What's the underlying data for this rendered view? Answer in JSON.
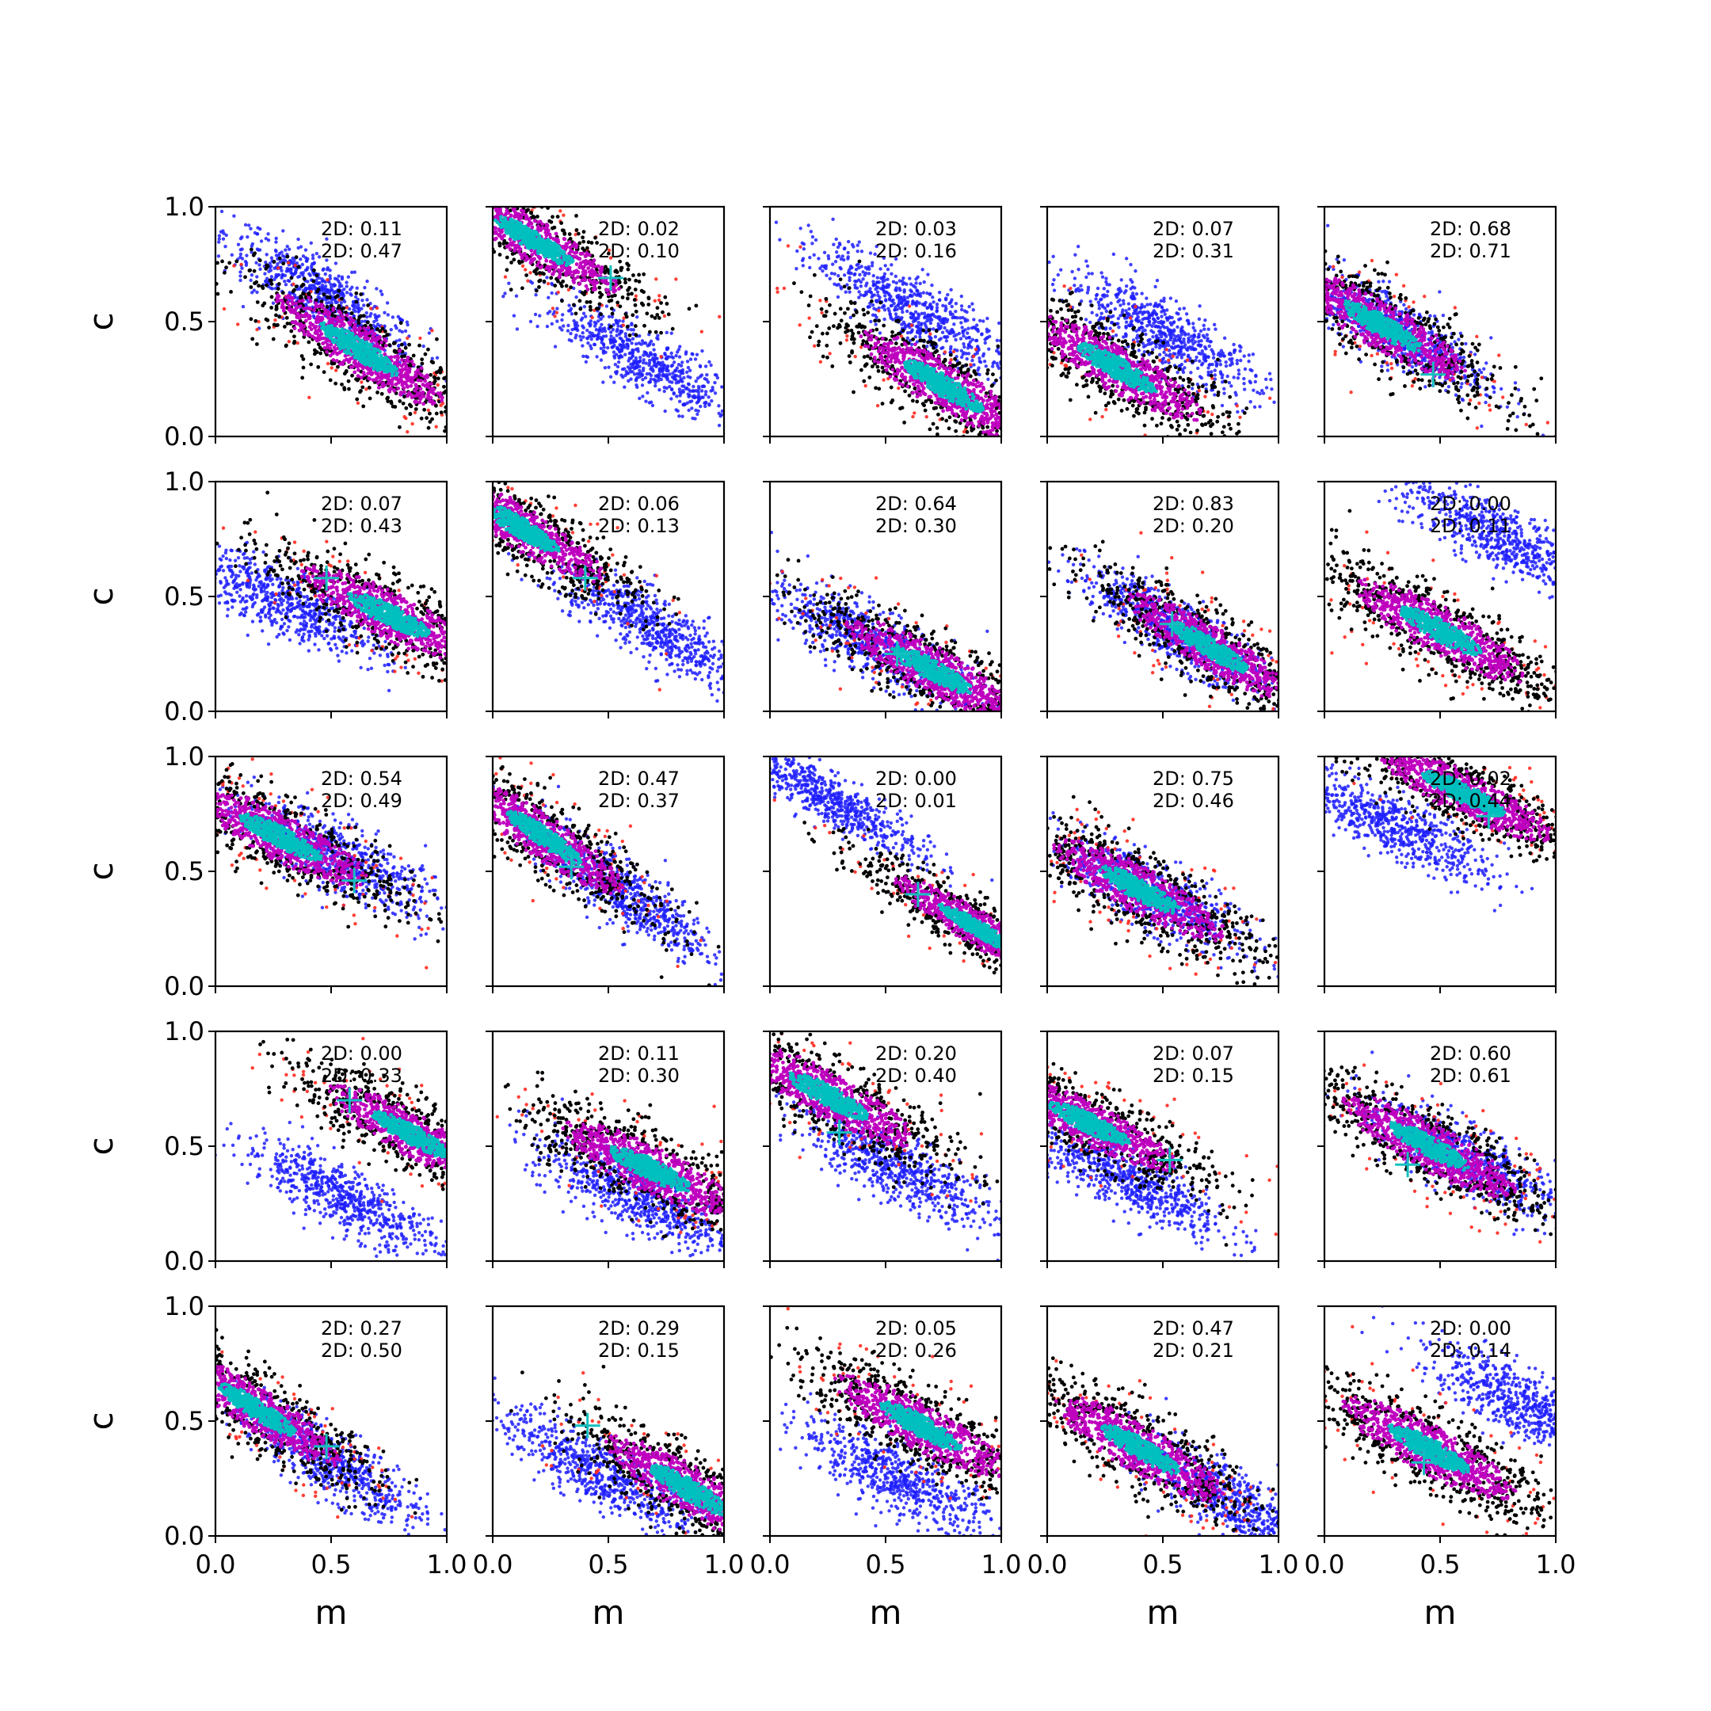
{
  "chart_data": {
    "type": "scatter",
    "grid": false,
    "layout_rows": 5,
    "layout_cols": 5,
    "xlabel": "m",
    "ylabel": "c",
    "xlim": [
      0,
      1
    ],
    "ylim": [
      0,
      1
    ],
    "x_ticks": [
      "0.0",
      "0.5",
      "1.0"
    ],
    "y_ticks": [
      "0.0",
      "0.5",
      "1.0"
    ],
    "point_colors": {
      "blue": "#1f1fff",
      "red": "#ff2a1f",
      "black": "#000000",
      "magenta": "#bf00bf",
      "cyan": "#00bfbf",
      "marker": "#17bfbf"
    },
    "panels": [
      {
        "labels": [
          "2D: 0.11",
          "2D: 0.47"
        ],
        "cross": null,
        "truth": [
          0.62,
          0.38
        ],
        "blue": [
          0.45,
          0.62
        ],
        "slope": -0.65,
        "cov": 0.11
      },
      {
        "labels": [
          "2D: 0.02",
          "2D: 0.10"
        ],
        "cross": [
          0.51,
          0.69
        ],
        "truth": [
          0.18,
          0.85
        ],
        "blue": [
          0.65,
          0.33
        ],
        "slope": -0.6,
        "cov": 0.1
      },
      {
        "labels": [
          "2D: 0.03",
          "2D: 0.16"
        ],
        "cross": null,
        "truth": [
          0.75,
          0.22
        ],
        "blue": [
          0.62,
          0.55
        ],
        "slope": -0.62,
        "cov": 0.11
      },
      {
        "labels": [
          "2D: 0.07",
          "2D: 0.31"
        ],
        "cross": null,
        "truth": [
          0.3,
          0.3
        ],
        "blue": [
          0.5,
          0.45
        ],
        "slope": -0.58,
        "cov": 0.11
      },
      {
        "labels": [
          "2D: 0.68",
          "2D: 0.71"
        ],
        "cross": [
          0.47,
          0.27
        ],
        "truth": [
          0.25,
          0.48
        ],
        "blue": [
          0.3,
          0.47
        ],
        "slope": -0.6,
        "cov": 0.11
      },
      {
        "labels": [
          "2D: 0.07",
          "2D: 0.43"
        ],
        "cross": [
          0.48,
          0.58
        ],
        "truth": [
          0.75,
          0.42
        ],
        "blue": [
          0.3,
          0.47
        ],
        "slope": -0.5,
        "cov": 0.11
      },
      {
        "labels": [
          "2D: 0.06",
          "2D: 0.13"
        ],
        "cross": [
          0.4,
          0.58
        ],
        "truth": [
          0.12,
          0.8
        ],
        "blue": [
          0.68,
          0.37
        ],
        "slope": -0.62,
        "cov": 0.1
      },
      {
        "labels": [
          "2D: 0.64",
          "2D: 0.30"
        ],
        "cross": [
          0.55,
          0.25
        ],
        "truth": [
          0.7,
          0.18
        ],
        "blue": [
          0.4,
          0.32
        ],
        "slope": -0.55,
        "cov": 0.11
      },
      {
        "labels": [
          "2D: 0.83",
          "2D: 0.20"
        ],
        "cross": [
          0.54,
          0.38
        ],
        "truth": [
          0.7,
          0.28
        ],
        "blue": [
          0.55,
          0.36
        ],
        "slope": -0.62,
        "cov": 0.1
      },
      {
        "labels": [
          "2D: 0.00",
          "2D: 0.11"
        ],
        "cross": null,
        "truth": [
          0.5,
          0.35
        ],
        "blue": [
          0.75,
          0.76
        ],
        "slope": -0.55,
        "cov": 0.11
      },
      {
        "labels": [
          "2D: 0.54",
          "2D: 0.49"
        ],
        "cross": [
          0.6,
          0.46
        ],
        "truth": [
          0.28,
          0.65
        ],
        "blue": [
          0.55,
          0.55
        ],
        "slope": -0.52,
        "cov": 0.11
      },
      {
        "labels": [
          "2D: 0.47",
          "2D: 0.37"
        ],
        "cross": [
          0.34,
          0.52
        ],
        "truth": [
          0.22,
          0.65
        ],
        "blue": [
          0.55,
          0.42
        ],
        "slope": -0.7,
        "cov": 0.1
      },
      {
        "labels": [
          "2D: 0.00",
          "2D: 0.01"
        ],
        "cross": [
          0.64,
          0.4
        ],
        "truth": [
          0.9,
          0.25
        ],
        "blue": [
          0.25,
          0.82
        ],
        "slope": -0.6,
        "cov": 0.08
      },
      {
        "labels": [
          "2D: 0.75",
          "2D: 0.46"
        ],
        "cross": null,
        "truth": [
          0.4,
          0.42
        ],
        "blue": [
          0.45,
          0.4
        ],
        "slope": -0.55,
        "cov": 0.11
      },
      {
        "labels": [
          "2D: 0.02",
          "2D: 0.44"
        ],
        "cross": [
          0.71,
          0.74
        ],
        "truth": [
          0.6,
          0.84
        ],
        "blue": [
          0.3,
          0.7
        ],
        "slope": -0.5,
        "cov": 0.1
      },
      {
        "labels": [
          "2D: 0.00",
          "2D: 0.33"
        ],
        "cross": [
          0.58,
          0.7
        ],
        "truth": [
          0.85,
          0.55
        ],
        "blue": [
          0.55,
          0.28
        ],
        "slope": -0.55,
        "cov": 0.1
      },
      {
        "labels": [
          "2D: 0.11",
          "2D: 0.30"
        ],
        "cross": null,
        "truth": [
          0.68,
          0.4
        ],
        "blue": [
          0.62,
          0.28
        ],
        "slope": -0.5,
        "cov": 0.11
      },
      {
        "labels": [
          "2D: 0.20",
          "2D: 0.40"
        ],
        "cross": [
          0.3,
          0.56
        ],
        "truth": [
          0.25,
          0.72
        ],
        "blue": [
          0.55,
          0.4
        ],
        "slope": -0.55,
        "cov": 0.11
      },
      {
        "labels": [
          "2D: 0.07",
          "2D: 0.15"
        ],
        "cross": [
          0.53,
          0.44
        ],
        "truth": [
          0.18,
          0.6
        ],
        "blue": [
          0.35,
          0.35
        ],
        "slope": -0.5,
        "cov": 0.1
      },
      {
        "labels": [
          "2D: 0.60",
          "2D: 0.61"
        ],
        "cross": [
          0.36,
          0.42
        ],
        "truth": [
          0.45,
          0.5
        ],
        "blue": [
          0.6,
          0.45
        ],
        "slope": -0.55,
        "cov": 0.11
      },
      {
        "labels": [
          "2D: 0.27",
          "2D: 0.50"
        ],
        "cross": [
          0.48,
          0.39
        ],
        "truth": [
          0.18,
          0.55
        ],
        "blue": [
          0.5,
          0.32
        ],
        "slope": -0.65,
        "cov": 0.1
      },
      {
        "labels": [
          "2D: 0.29",
          "2D: 0.15"
        ],
        "cross": [
          0.41,
          0.48
        ],
        "truth": [
          0.85,
          0.2
        ],
        "blue": [
          0.45,
          0.28
        ],
        "slope": -0.6,
        "cov": 0.11
      },
      {
        "labels": [
          "2D: 0.05",
          "2D: 0.26"
        ],
        "cross": null,
        "truth": [
          0.65,
          0.48
        ],
        "blue": [
          0.55,
          0.25
        ],
        "slope": -0.55,
        "cov": 0.11
      },
      {
        "labels": [
          "2D: 0.47",
          "2D: 0.21"
        ],
        "cross": null,
        "truth": [
          0.4,
          0.38
        ],
        "blue": [
          0.8,
          0.15
        ],
        "slope": -0.6,
        "cov": 0.11
      },
      {
        "labels": [
          "2D: 0.00",
          "2D: 0.14"
        ],
        "cross": [
          0.43,
          0.32
        ],
        "truth": [
          0.45,
          0.38
        ],
        "blue": [
          0.85,
          0.58
        ],
        "slope": -0.55,
        "cov": 0.11
      }
    ]
  }
}
